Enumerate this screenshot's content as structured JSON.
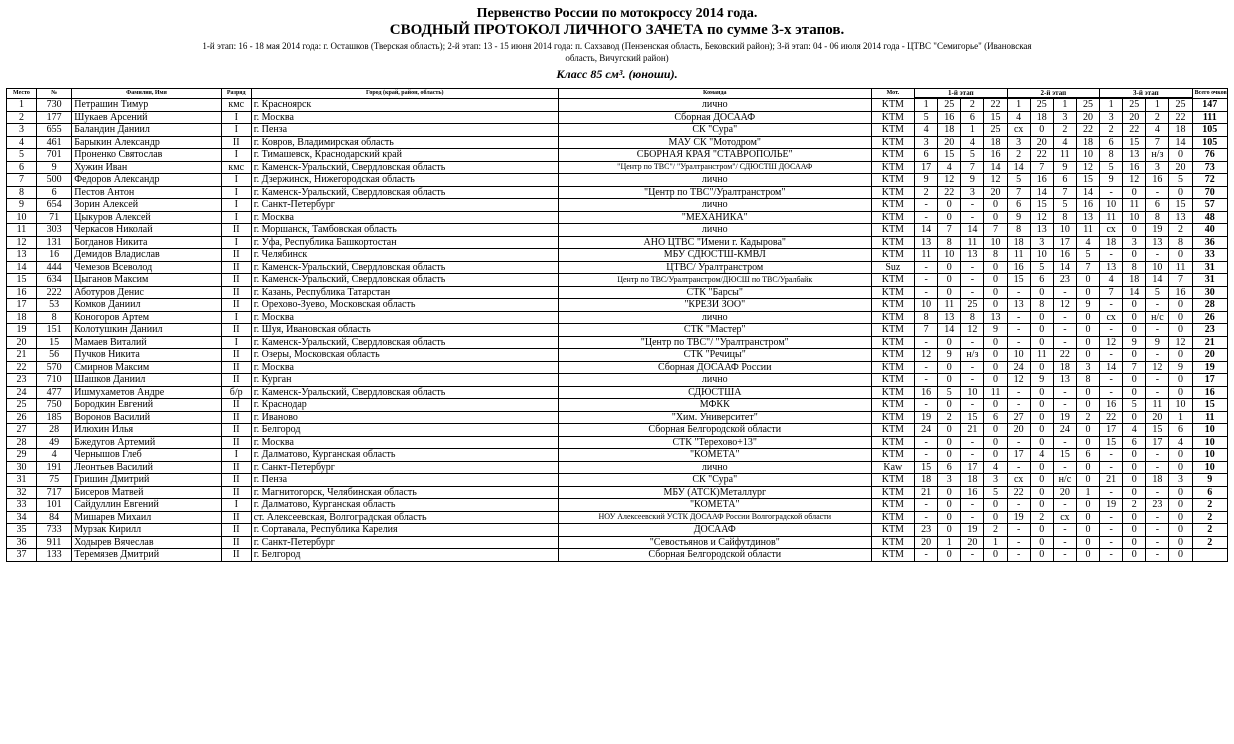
{
  "header": {
    "title1": "Первенство России по мотокроссу 2014 года.",
    "title2": "СВОДНЫЙ ПРОТОКОЛ ЛИЧНОГО ЗАЧЕТА по сумме 3-х этапов.",
    "sub1": "1-й этап: 16 - 18 мая 2014 года: г. Осташков (Тверская область); 2-й этап: 13 - 15 июня 2014 года: п. Сахзавод (Пензенская область, Бековский район); 3-й этап: 04 - 06 июля 2014 года - ЦТВС \"Семигорье\" (Ивановская",
    "sub2": "область, Вичугский район)",
    "class_line": "Класс 85 см³. (юноши)."
  },
  "columns": {
    "place": "Место",
    "num": "№",
    "name": "Фамилия, Имя",
    "rank": "Разряд",
    "city": "Город (край, район, область)",
    "team": "Команда",
    "bike": "Мот."
  },
  "stages": [
    "1-й этап",
    "2-й этап",
    "3-й этап"
  ],
  "total_label": "Всего очков",
  "rows": [
    {
      "p": 1,
      "n": 730,
      "name": "Петрашин Тимур",
      "r": "кмс",
      "city": "г. Красноярск",
      "team": "лично",
      "bike": "KTM",
      "s": [
        1,
        25,
        2,
        22,
        1,
        25,
        1,
        25,
        1,
        25,
        1,
        25
      ],
      "tot": 147
    },
    {
      "p": 2,
      "n": 177,
      "name": "Шукаев Арсений",
      "r": "I",
      "city": "г. Москва",
      "team": "Сборная ДОСААФ",
      "bike": "KTM",
      "s": [
        5,
        16,
        6,
        15,
        4,
        18,
        3,
        20,
        3,
        20,
        2,
        22
      ],
      "tot": 111
    },
    {
      "p": 3,
      "n": 655,
      "name": "Баландин Даниил",
      "r": "I",
      "city": "г. Пенза",
      "team": "СК \"Сура\"",
      "bike": "KTM",
      "s": [
        4,
        18,
        1,
        25,
        "сх",
        0,
        2,
        22,
        2,
        22,
        4,
        18
      ],
      "tot": 105
    },
    {
      "p": 4,
      "n": 461,
      "name": "Барыкин Александр",
      "r": "II",
      "city": "г. Ковров, Владимирская область",
      "team": "МАУ СК \"Мотодром\"",
      "bike": "KTM",
      "s": [
        3,
        20,
        4,
        18,
        3,
        20,
        4,
        18,
        6,
        15,
        7,
        14
      ],
      "tot": 105
    },
    {
      "p": 5,
      "n": 701,
      "name": "Проненко Святослав",
      "r": "I",
      "city": "г. Тимашевск, Краснодарский край",
      "team": "СБОРНАЯ КРАЯ \"СТАВРОПОЛЬЕ\"",
      "bike": "KTM",
      "s": [
        6,
        15,
        5,
        16,
        2,
        22,
        11,
        10,
        8,
        13,
        "н/з",
        0
      ],
      "tot": 76
    },
    {
      "p": 6,
      "n": 9,
      "name": "Хужин Иван",
      "r": "кмс",
      "city": "г. Каменск-Уральский, Свердловская область",
      "team": "\"Центр по ТВС\"/ \"Уралтранстром\"/ СДЮСТШ ДОСААФ",
      "bike": "KTM",
      "s": [
        17,
        4,
        7,
        14,
        14,
        7,
        9,
        12,
        5,
        16,
        3,
        20
      ],
      "tot": 73
    },
    {
      "p": 7,
      "n": 500,
      "name": "Федоров Александр",
      "r": "I",
      "city": "г. Дзержинск, Нижегородская область",
      "team": "лично",
      "bike": "KTM",
      "s": [
        9,
        12,
        9,
        12,
        5,
        16,
        6,
        15,
        9,
        12,
        16,
        5
      ],
      "tot": 72
    },
    {
      "p": 8,
      "n": 6,
      "name": "Пестов Антон",
      "r": "I",
      "city": "г. Каменск-Уральский, Свердловская область",
      "team": "\"Центр по ТВС\"/Уралтранстром\"",
      "bike": "KTM",
      "s": [
        2,
        22,
        3,
        20,
        7,
        14,
        7,
        14,
        "-",
        0,
        "-",
        0
      ],
      "tot": 70
    },
    {
      "p": 9,
      "n": 654,
      "name": "Зорин Алексей",
      "r": "I",
      "city": "г. Санкт-Петербург",
      "team": "лично",
      "bike": "KTM",
      "s": [
        "-",
        0,
        "-",
        0,
        6,
        15,
        5,
        16,
        10,
        11,
        6,
        15
      ],
      "tot": 57
    },
    {
      "p": 10,
      "n": 71,
      "name": "Цыкуров Алексей",
      "r": "I",
      "city": "г. Москва",
      "team": "\"МЕХАНИКА\"",
      "bike": "KTM",
      "s": [
        "-",
        0,
        "-",
        0,
        9,
        12,
        8,
        13,
        11,
        10,
        8,
        13
      ],
      "tot": 48
    },
    {
      "p": 11,
      "n": 303,
      "name": "Черкасов Николай",
      "r": "II",
      "city": "г. Моршанск, Тамбовская область",
      "team": "лично",
      "bike": "KTM",
      "s": [
        14,
        7,
        14,
        7,
        8,
        13,
        10,
        11,
        "сх",
        0,
        19,
        2
      ],
      "tot": 40
    },
    {
      "p": 12,
      "n": 131,
      "name": "Богданов Никита",
      "r": "I",
      "city": "г. Уфа, Республика Башкортостан",
      "team": "АНО ЦТВС \"Имени г. Кадырова\"",
      "bike": "KTM",
      "s": [
        13,
        8,
        11,
        10,
        18,
        3,
        17,
        4,
        18,
        3,
        13,
        8
      ],
      "tot": 36
    },
    {
      "p": 13,
      "n": 16,
      "name": "Демидов Владислав",
      "r": "II",
      "city": "г. Челябинск",
      "team": "МБУ СДЮСТШ-КМВЛ",
      "bike": "KTM",
      "s": [
        11,
        10,
        13,
        8,
        11,
        10,
        16,
        5,
        "-",
        0,
        "-",
        0
      ],
      "tot": 33
    },
    {
      "p": 14,
      "n": 444,
      "name": "Чемезов Всеволод",
      "r": "II",
      "city": "г. Каменск-Уральский, Свердловская область",
      "team": "ЦТВС/ Уралтранстром",
      "bike": "Suz",
      "s": [
        "-",
        0,
        "-",
        0,
        16,
        5,
        14,
        7,
        13,
        8,
        10,
        11
      ],
      "tot": 31
    },
    {
      "p": 15,
      "n": 634,
      "name": "Цыганов Максим",
      "r": "II",
      "city": "г. Каменск-Уральский, Свердловская область",
      "team": "Центр по ТВС/Уралтранстром/ДЮСШ по ТВС/Уралбайк",
      "bike": "KTM",
      "s": [
        "-",
        0,
        "-",
        0,
        15,
        6,
        23,
        0,
        4,
        18,
        14,
        7
      ],
      "tot": 31
    },
    {
      "p": 16,
      "n": 222,
      "name": "Аботуров Денис",
      "r": "II",
      "city": "г. Казань, Республика Татарстан",
      "team": "СТК \"Барсы\"",
      "bike": "KTM",
      "s": [
        "-",
        0,
        "-",
        0,
        "-",
        0,
        "-",
        0,
        7,
        14,
        5,
        16
      ],
      "tot": 30
    },
    {
      "p": 17,
      "n": 53,
      "name": "Комков Даниил",
      "r": "II",
      "city": "г. Орехово-Зуево, Московская область",
      "team": "\"КРЕЗИ ЗОО\"",
      "bike": "KTM",
      "s": [
        10,
        11,
        25,
        0,
        13,
        8,
        12,
        9,
        "-",
        0,
        "-",
        0
      ],
      "tot": 28
    },
    {
      "p": 18,
      "n": 8,
      "name": "Коногоров Артем",
      "r": "I",
      "city": "г. Москва",
      "team": "лично",
      "bike": "KTM",
      "s": [
        8,
        13,
        8,
        13,
        "-",
        0,
        "-",
        0,
        "сх",
        0,
        "н/с",
        0
      ],
      "tot": 26
    },
    {
      "p": 19,
      "n": 151,
      "name": "Колотушкин Даниил",
      "r": "II",
      "city": "г. Шуя, Ивановская область",
      "team": "СТК \"Мастер\"",
      "bike": "KTM",
      "s": [
        7,
        14,
        12,
        9,
        "-",
        0,
        "-",
        0,
        "-",
        0,
        "-",
        0
      ],
      "tot": 23
    },
    {
      "p": 20,
      "n": 15,
      "name": "Мамаев Виталий",
      "r": "I",
      "city": "г. Каменск-Уральский, Свердловская область",
      "team": "\"Центр по ТВС\"/ \"Уралтранстром\"",
      "bike": "KTM",
      "s": [
        "-",
        0,
        "-",
        0,
        "-",
        0,
        "-",
        0,
        12,
        9,
        9,
        12
      ],
      "tot": 21
    },
    {
      "p": 21,
      "n": 56,
      "name": "Пучков Никита",
      "r": "II",
      "city": "г. Озеры, Московская область",
      "team": "СТК \"Речицы\"",
      "bike": "KTM",
      "s": [
        12,
        9,
        "н/з",
        0,
        10,
        11,
        22,
        0,
        "-",
        0,
        "-",
        0
      ],
      "tot": 20
    },
    {
      "p": 22,
      "n": 570,
      "name": "Смирнов Максим",
      "r": "II",
      "city": "г. Москва",
      "team": "Сборная ДОСААФ России",
      "bike": "KTM",
      "s": [
        "-",
        0,
        "-",
        0,
        24,
        0,
        18,
        3,
        14,
        7,
        12,
        9
      ],
      "tot": 19
    },
    {
      "p": 23,
      "n": 710,
      "name": "Шашков Даниил",
      "r": "II",
      "city": "г. Курган",
      "team": "лично",
      "bike": "KTM",
      "s": [
        "-",
        0,
        "-",
        0,
        12,
        9,
        13,
        8,
        "-",
        0,
        "-",
        0
      ],
      "tot": 17
    },
    {
      "p": 24,
      "n": 477,
      "name": "Ишмухаметов Андре",
      "r": "б/р",
      "city": "г. Каменск-Уральский, Свердловская область",
      "team": "СДЮСТША",
      "bike": "KTM",
      "s": [
        16,
        5,
        10,
        11,
        "-",
        0,
        "-",
        0,
        "-",
        0,
        "-",
        0
      ],
      "tot": 16
    },
    {
      "p": 25,
      "n": 750,
      "name": "Бородкин Евгений",
      "r": "II",
      "city": "г. Краснодар",
      "team": "МФКК",
      "bike": "KTM",
      "s": [
        "-",
        0,
        "-",
        0,
        "-",
        0,
        "-",
        0,
        16,
        5,
        11,
        10
      ],
      "tot": 15
    },
    {
      "p": 26,
      "n": 185,
      "name": "Воронов Василий",
      "r": "II",
      "city": "г. Иваново",
      "team": "\"Хим. Университет\"",
      "bike": "KTM",
      "s": [
        19,
        2,
        15,
        6,
        27,
        0,
        19,
        2,
        22,
        0,
        20,
        1
      ],
      "tot": 11
    },
    {
      "p": 27,
      "n": 28,
      "name": "Илюхин Илья",
      "r": "II",
      "city": "г. Белгород",
      "team": "Сборная Белгородской области",
      "bike": "KTM",
      "s": [
        24,
        0,
        21,
        0,
        20,
        0,
        24,
        0,
        17,
        4,
        15,
        6
      ],
      "tot": 10
    },
    {
      "p": 28,
      "n": 49,
      "name": "Бжедугов Артемий",
      "r": "II",
      "city": "г. Москва",
      "team": "СТК \"Терехово+13\"",
      "bike": "KTM",
      "s": [
        "-",
        0,
        "-",
        0,
        "-",
        0,
        "-",
        0,
        15,
        6,
        17,
        4
      ],
      "tot": 10
    },
    {
      "p": 29,
      "n": 4,
      "name": "Чернышов Глеб",
      "r": "I",
      "city": "г. Далматово, Курганская область",
      "team": "\"КОМЕТА\"",
      "bike": "KTM",
      "s": [
        "-",
        0,
        "-",
        0,
        17,
        4,
        15,
        6,
        "-",
        0,
        "-",
        0
      ],
      "tot": 10
    },
    {
      "p": 30,
      "n": 191,
      "name": "Леонтьев Василий",
      "r": "II",
      "city": "г. Санкт-Петербург",
      "team": "лично",
      "bike": "Kaw",
      "s": [
        15,
        6,
        17,
        4,
        "-",
        0,
        "-",
        0,
        "-",
        0,
        "-",
        0
      ],
      "tot": 10
    },
    {
      "p": 31,
      "n": 75,
      "name": "Гришин Дмитрий",
      "r": "II",
      "city": "г. Пенза",
      "team": "СК \"Сура\"",
      "bike": "KTM",
      "s": [
        18,
        3,
        18,
        3,
        "сх",
        0,
        "н/с",
        0,
        21,
        0,
        18,
        3
      ],
      "tot": 9
    },
    {
      "p": 32,
      "n": 717,
      "name": "Бисеров Матвей",
      "r": "II",
      "city": "г. Магнитогорск, Челябинская область",
      "team": "МБУ (АТСК)Металлург",
      "bike": "KTM",
      "s": [
        21,
        0,
        16,
        5,
        22,
        0,
        20,
        1,
        "-",
        0,
        "-",
        0
      ],
      "tot": 6
    },
    {
      "p": 33,
      "n": 101,
      "name": "Сайдуллин Евгений",
      "r": "I",
      "city": "г. Далматово, Курганская область",
      "team": "\"КОМЕТА\"",
      "bike": "KTM",
      "s": [
        "-",
        0,
        "-",
        0,
        "-",
        0,
        "-",
        0,
        19,
        2,
        23,
        0
      ],
      "tot": 2
    },
    {
      "p": 34,
      "n": 84,
      "name": "Мишарев Михаил",
      "r": "II",
      "city": "ст. Алексеевская, Волгоградская область",
      "team": "НОУ Алексеевский УСТК ДОСААФ России Волгоградской области",
      "bike": "KTM",
      "s": [
        "-",
        0,
        "-",
        0,
        19,
        2,
        "сх",
        0,
        "-",
        0,
        "-",
        0
      ],
      "tot": 2
    },
    {
      "p": 35,
      "n": 733,
      "name": "Мурзак Кирилл",
      "r": "II",
      "city": "г. Сортавала, Республика Карелия",
      "team": "ДОСААФ",
      "bike": "KTM",
      "s": [
        23,
        0,
        19,
        2,
        "-",
        0,
        "-",
        0,
        "-",
        0,
        "-",
        0
      ],
      "tot": 2
    },
    {
      "p": 36,
      "n": 911,
      "name": "Ходырев Вячеслав",
      "r": "II",
      "city": "г. Санкт-Петербург",
      "team": "\"Севостьянов и Сайфутдинов\"",
      "bike": "KTM",
      "s": [
        20,
        1,
        20,
        1,
        "-",
        0,
        "-",
        0,
        "-",
        0,
        "-",
        0
      ],
      "tot": 2
    },
    {
      "p": 37,
      "n": 133,
      "name": "Теремязев Дмитрий",
      "r": "II",
      "city": "г. Белгород",
      "team": "Сборная Белгородской области",
      "bike": "KTM",
      "s": [
        "-",
        0,
        "-",
        0,
        "-",
        0,
        "-",
        0,
        "-",
        0,
        "-",
        0
      ],
      "tot": ""
    }
  ]
}
